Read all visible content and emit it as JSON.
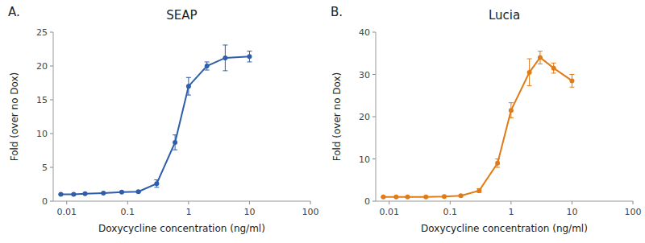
{
  "chart_data": [
    {
      "type": "line",
      "title": "SEAP",
      "annotations": [
        "A."
      ],
      "color": "#2e5eaa",
      "marker": "circle",
      "line_style": "solid",
      "log": "x",
      "x": [
        0.008,
        0.013,
        0.02,
        0.04,
        0.08,
        0.15,
        0.3,
        0.6,
        1.0,
        2.0,
        4.0,
        10.0
      ],
      "values": [
        1.0,
        1.0,
        1.1,
        1.2,
        1.35,
        1.4,
        2.6,
        8.7,
        17.0,
        20.0,
        21.2,
        21.4
      ],
      "yerr": [
        0.05,
        0.05,
        0.05,
        0.05,
        0.08,
        0.12,
        0.55,
        1.1,
        1.3,
        0.6,
        1.9,
        0.8
      ],
      "y_label": "Fold (over no Dox)",
      "x_label": "Doxycycline concentration (ng/ml)",
      "ylim": [
        0,
        25
      ],
      "yticks": [
        0,
        5,
        10,
        15,
        20,
        25
      ],
      "xlim": [
        0.006,
        100
      ],
      "xticks": [
        0.01,
        0.1,
        1,
        10,
        100
      ]
    },
    {
      "type": "line",
      "title": "Lucia",
      "annotations": [
        "B."
      ],
      "color": "#e07b1a",
      "marker": "circle",
      "line_style": "solid",
      "log": "x",
      "x": [
        0.008,
        0.013,
        0.02,
        0.04,
        0.08,
        0.15,
        0.3,
        0.6,
        1.0,
        2.0,
        3.0,
        5.0,
        10.0
      ],
      "values": [
        1.0,
        1.0,
        1.0,
        1.0,
        1.1,
        1.3,
        2.5,
        9.0,
        21.5,
        30.5,
        34.0,
        31.5,
        28.5
      ],
      "yerr": [
        0.05,
        0.05,
        0.05,
        0.05,
        0.1,
        0.15,
        0.45,
        1.0,
        1.8,
        3.2,
        1.5,
        1.2,
        1.5
      ],
      "y_label": "Fold (over no Dox)",
      "x_label": "Doxycycline concentration (ng/ml)",
      "ylim": [
        0,
        40
      ],
      "yticks": [
        0,
        10,
        20,
        30,
        40
      ],
      "xlim": [
        0.006,
        100
      ],
      "xticks": [
        0.01,
        0.1,
        1,
        10,
        100
      ]
    }
  ]
}
